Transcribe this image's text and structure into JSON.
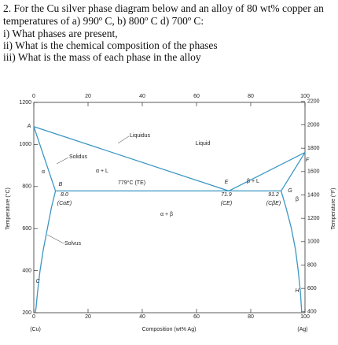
{
  "question": {
    "lines": [
      "2. For the Cu silver phase diagram below and an alloy of 80 wt% copper an",
      "temperatures of a) 990º C, b) 800º C d) 700º C:",
      "i) What phases are present,",
      "ii) What is the chemical composition of the phases",
      "iii) What is the mass of each phase in the alloy"
    ]
  },
  "chart_data": {
    "type": "line",
    "x_label": "Composition (wt% Ag)",
    "y_label": "Temperature (°C)",
    "y2_label": "Temperature (°F)",
    "x_end_labels": [
      "(Cu)",
      "(Ag)"
    ],
    "xlim": [
      0,
      100
    ],
    "xticks": [
      0,
      20,
      40,
      60,
      80,
      100
    ],
    "ylim": [
      200,
      1200
    ],
    "yticks": [
      200,
      400,
      600,
      800,
      1000,
      1200
    ],
    "y2lim": [
      392,
      2192
    ],
    "y2ticks": [
      400,
      600,
      800,
      1000,
      1200,
      1400,
      1600,
      1800,
      2000,
      2200
    ],
    "series": [
      {
        "name": "Liquidus",
        "color": "#3b97c3",
        "x": [
          0,
          71.9,
          100
        ],
        "values": [
          1085,
          779,
          962
        ]
      },
      {
        "name": "Solidus",
        "color": "#3b97c3",
        "x": [
          0,
          8.0
        ],
        "values": [
          1085,
          779
        ]
      },
      {
        "name": "Solvus",
        "color": "#3b97c3",
        "x": [
          8.0,
          6.5,
          5,
          3.5,
          2.3,
          1.4,
          0.8,
          0.5
        ],
        "values": [
          779,
          700,
          600,
          500,
          400,
          300,
          220,
          200
        ]
      },
      {
        "name": "779°C (TE)",
        "color": "#3b97c3",
        "x": [
          8.0,
          91.2
        ],
        "values": [
          779,
          779
        ]
      },
      {
        "color": "#3b97c3",
        "x": [
          100,
          91.2
        ],
        "values": [
          962,
          779
        ]
      },
      {
        "color": "#3b97c3",
        "x": [
          91.2,
          93,
          95,
          96.5,
          97.5,
          98.3,
          98.8
        ],
        "values": [
          779,
          700,
          600,
          500,
          400,
          300,
          200
        ]
      }
    ],
    "annotations": [
      "A",
      "B",
      "C",
      "E",
      "F",
      "G",
      "H",
      "Liquid",
      "α + L",
      "β + L",
      "α + β",
      "α",
      "β",
      "8.0",
      "(CαE)",
      "71.9",
      "(CE)",
      "91.2",
      "(CβE)"
    ]
  }
}
